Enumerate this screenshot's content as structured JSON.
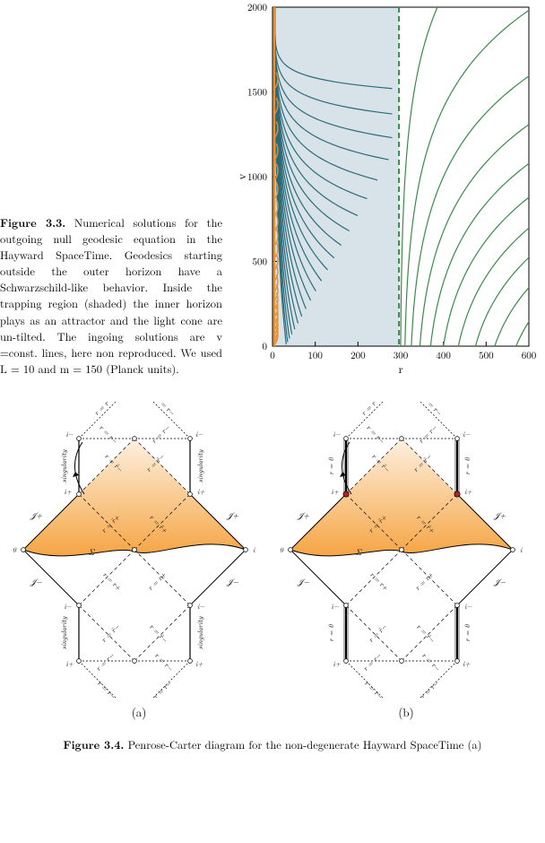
{
  "figure33": {
    "label": "Figure 3.3.",
    "text": "Numerical solutions for the outgoing null geodesic equation in the Hayward SpaceTime. Geodesics starting outside the outer horizon have a Schwarzschild-like behavior. Inside the trapping region (shaded) the inner horizon plays as an attractor and the light cone are un-tilted. The ingoing solutions are v =const. lines, here non reproduced. We used L = 10 and m = 150 (Planck units).",
    "chart": {
      "type": "line",
      "xlim": [
        0,
        600
      ],
      "ylim": [
        0,
        2000
      ],
      "xticks": [
        0,
        100,
        200,
        300,
        400,
        500,
        600
      ],
      "yticks": [
        0,
        500,
        1000,
        1500,
        2000
      ],
      "xlabel": "r",
      "ylabel": "v",
      "shaded_region": {
        "xmin": 4,
        "xmax": 296,
        "color": "#d8e2e9"
      },
      "horizons": {
        "inner": {
          "x": 4,
          "color": "#e98f2c",
          "width": 2.5
        },
        "outer": {
          "x": 296,
          "color": "#3a8a4a",
          "width": 2,
          "dash": "6,4"
        }
      },
      "geodesic_color_inside": "#2a6b7a",
      "geodesic_color_outside": "#3a8a4a",
      "line_width": 1.2,
      "background_color": "#ffffff",
      "frame_color": "#000000",
      "tick_fontsize": 11,
      "label_fontsize": 13,
      "geodesics_inside_v0": [
        10,
        25,
        45,
        70,
        100,
        135,
        175,
        220,
        270,
        325,
        385,
        450,
        520,
        595,
        680,
        770,
        870,
        980,
        1100,
        1230,
        1370,
        1520
      ],
      "geodesics_outside_r0": [
        300,
        310,
        325,
        345,
        370,
        400,
        435,
        475,
        520,
        570
      ]
    }
  },
  "figure34": {
    "label": "Figure 3.4.",
    "text": "Penrose-Carter diagram for the non-degenerate Hayward SpaceTime (a)",
    "sub_a": "(a)",
    "sub_b": "(b)",
    "penrose": {
      "outline_color": "#000000",
      "surface_fill": "#f5a03a",
      "surface_label": "Σ",
      "node_fill": "#ffffff",
      "node_fill_b": "#b22222",
      "line_width": 0.7,
      "dash_short": "2,2",
      "dash_long": "4,3",
      "labels_a": {
        "top_vert_left": "singularity",
        "top_vert_right": "singularity",
        "bot_vert_left": "singularity",
        "bot_vert_right": "singularity",
        "top_diag": "r = r−",
        "bot_diag": "r = r−",
        "inner_top": "r = r̃−",
        "inner_mid": "r = r̃+",
        "outer": "r = r+",
        "scri_plus": "𝒥+",
        "scri_minus": "𝒥−",
        "i_plus": "i+",
        "i_minus": "i−",
        "i_zero": "i0"
      },
      "labels_b": {
        "top_vert_left": "r = 0",
        "top_vert_right": "r = 0",
        "bot_vert_left": "r = 0",
        "bot_vert_right": "r = 0"
      }
    }
  }
}
